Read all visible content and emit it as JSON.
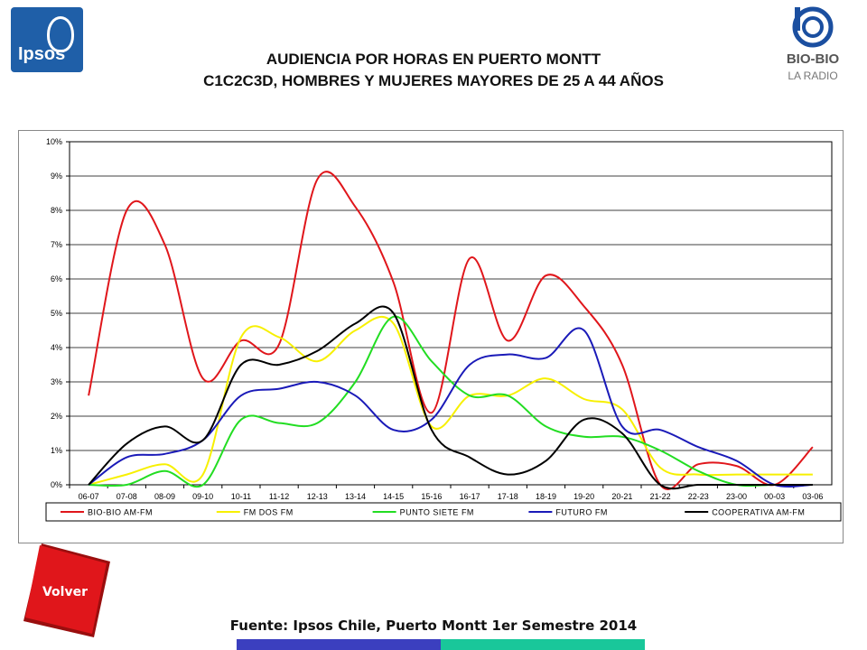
{
  "logos": {
    "ipsos": "Ipsos",
    "bio_line1": "BIO-BIO",
    "bio_line2": "LA RADIO"
  },
  "title_line1": "AUDIENCIA POR HORAS EN PUERTO MONTT",
  "title_line2": "C1C2C3D, HOMBRES Y MUJERES MAYORES DE 25 A 44 AÑOS",
  "footer": "Fuente: Ipsos Chile, Puerto Montt 1er Semestre 2014",
  "volver_label": "Volver",
  "colors": {
    "accent_blue": "#3b3fbf",
    "accent_teal": "#19c79a",
    "volver_red": "#e0161b"
  },
  "chart_data": {
    "type": "line",
    "categories": [
      "06-07",
      "07-08",
      "08-09",
      "09-10",
      "10-11",
      "11-12",
      "12-13",
      "13-14",
      "14-15",
      "15-16",
      "16-17",
      "17-18",
      "18-19",
      "19-20",
      "20-21",
      "21-22",
      "22-23",
      "23-00",
      "00-03",
      "03-06"
    ],
    "ylim": [
      0,
      10
    ],
    "yticks": [
      "0%",
      "1%",
      "2%",
      "3%",
      "4%",
      "5%",
      "6%",
      "7%",
      "8%",
      "9%",
      "10%"
    ],
    "grid": true,
    "legend_position": "bottom",
    "series": [
      {
        "name": "BIO-BIO AM-FM",
        "color": "#e0161b",
        "values": [
          2.6,
          8.0,
          7.0,
          3.1,
          4.2,
          4.1,
          8.9,
          8.1,
          5.9,
          2.1,
          6.6,
          4.2,
          6.1,
          5.2,
          3.5,
          0.0,
          0.6,
          0.55,
          0.0,
          1.1
        ]
      },
      {
        "name": "FM DOS FM",
        "color": "#f7f000",
        "values": [
          0.0,
          0.3,
          0.6,
          0.3,
          4.3,
          4.3,
          3.6,
          4.5,
          4.7,
          1.7,
          2.6,
          2.6,
          3.1,
          2.5,
          2.2,
          0.5,
          0.3,
          0.3,
          0.3,
          0.3
        ]
      },
      {
        "name": "PUNTO SIETE FM",
        "color": "#22dd22",
        "values": [
          0.0,
          0.0,
          0.4,
          0.0,
          1.9,
          1.8,
          1.8,
          3.0,
          4.9,
          3.6,
          2.6,
          2.6,
          1.7,
          1.4,
          1.4,
          1.0,
          0.4,
          0.0,
          0.0,
          0.0
        ]
      },
      {
        "name": "FUTURO FM",
        "color": "#1a1ab8",
        "values": [
          0.0,
          0.8,
          0.9,
          1.3,
          2.6,
          2.8,
          3.0,
          2.6,
          1.6,
          1.9,
          3.5,
          3.8,
          3.7,
          4.5,
          1.7,
          1.6,
          1.1,
          0.7,
          0.0,
          0.0
        ]
      },
      {
        "name": "COOPERATIVA AM-FM",
        "color": "#000000",
        "values": [
          0.0,
          1.2,
          1.7,
          1.3,
          3.5,
          3.5,
          3.9,
          4.7,
          5.0,
          1.6,
          0.8,
          0.3,
          0.7,
          1.9,
          1.5,
          0.0,
          0.0,
          0.0,
          0.0,
          0.0
        ]
      }
    ]
  }
}
